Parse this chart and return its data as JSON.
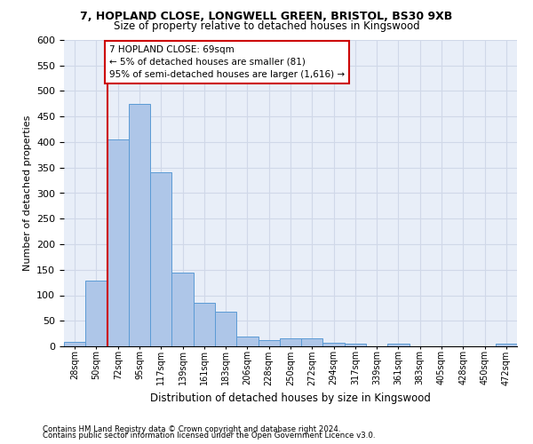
{
  "title_line1": "7, HOPLAND CLOSE, LONGWELL GREEN, BRISTOL, BS30 9XB",
  "title_line2": "Size of property relative to detached houses in Kingswood",
  "xlabel": "Distribution of detached houses by size in Kingswood",
  "ylabel": "Number of detached properties",
  "categories": [
    "28sqm",
    "50sqm",
    "72sqm",
    "95sqm",
    "117sqm",
    "139sqm",
    "161sqm",
    "183sqm",
    "206sqm",
    "228sqm",
    "250sqm",
    "272sqm",
    "294sqm",
    "317sqm",
    "339sqm",
    "361sqm",
    "383sqm",
    "405sqm",
    "428sqm",
    "450sqm",
    "472sqm"
  ],
  "values": [
    9,
    128,
    405,
    475,
    340,
    145,
    85,
    68,
    20,
    12,
    15,
    15,
    7,
    6,
    0,
    5,
    0,
    0,
    0,
    0,
    5
  ],
  "bar_color": "#aec6e8",
  "bar_edge_color": "#5b9bd5",
  "annotation_text": "7 HOPLAND CLOSE: 69sqm\n← 5% of detached houses are smaller (81)\n95% of semi-detached houses are larger (1,616) →",
  "annotation_box_color": "#ffffff",
  "annotation_box_edge_color": "#cc0000",
  "red_line_color": "#cc0000",
  "grid_color": "#d0d8e8",
  "bg_color": "#e8eef8",
  "footnote1": "Contains HM Land Registry data © Crown copyright and database right 2024.",
  "footnote2": "Contains public sector information licensed under the Open Government Licence v3.0.",
  "ylim": [
    0,
    600
  ],
  "yticks": [
    0,
    50,
    100,
    150,
    200,
    250,
    300,
    350,
    400,
    450,
    500,
    550,
    600
  ]
}
